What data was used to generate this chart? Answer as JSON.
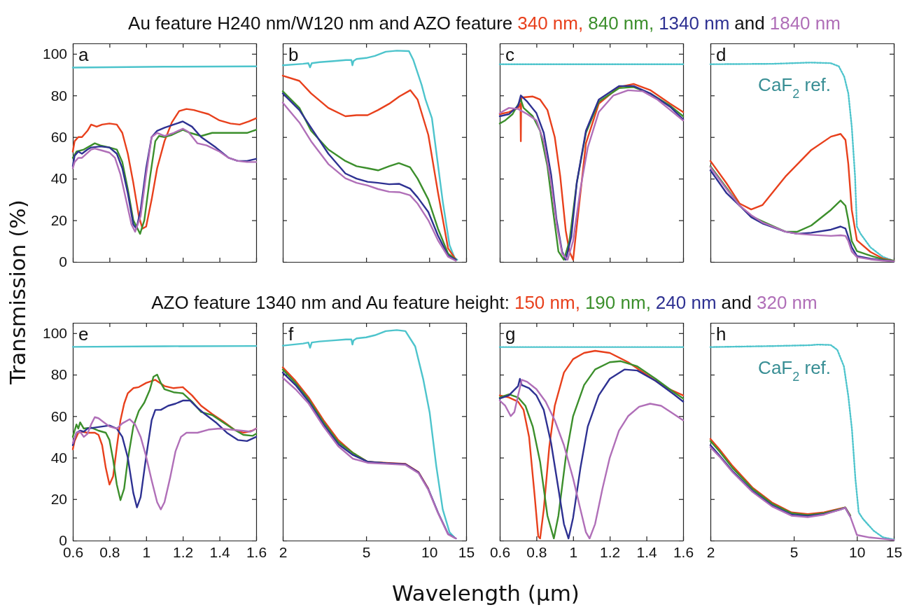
{
  "chart_data": [
    {
      "type": "line",
      "title": "a",
      "subtitle": "Au feature H240 nm/W120 nm and AZO feature",
      "ylabel": "Transmission (%)",
      "legend": "top",
      "annotations": [
        "and"
      ],
      "xlim": [
        0.6,
        1.6
      ],
      "xticks": [
        0.6,
        0.8,
        1,
        1.2,
        1.4,
        1.6
      ],
      "ylim": [
        0,
        105
      ],
      "yticks": [
        0,
        20,
        40,
        60,
        80,
        100
      ],
      "tick_labels": "y",
      "series": [
        {
          "color": "#4dc4cc",
          "x": [
            0.6,
            1.1,
            1.6
          ],
          "values": [
            93.4,
            93.8,
            94
          ]
        },
        {
          "name": "340 nm,",
          "color": "#e8401c",
          "x": [
            0.6,
            0.61,
            0.63,
            0.65,
            0.68,
            0.7,
            0.73,
            0.76,
            0.8,
            0.84,
            0.87,
            0.9,
            0.93,
            0.96,
            0.98,
            1.0,
            1.03,
            1.06,
            1.1,
            1.14,
            1.18,
            1.22,
            1.26,
            1.3,
            1.34,
            1.4,
            1.46,
            1.51,
            1.56,
            1.6
          ],
          "values": [
            53,
            58,
            60,
            60,
            63,
            66,
            65,
            66,
            66.5,
            66,
            62,
            52,
            38,
            22,
            16,
            17,
            30,
            45,
            58,
            67,
            72.5,
            73.5,
            73,
            72,
            71,
            68,
            66.5,
            66,
            67.5,
            69
          ]
        },
        {
          "name": "840 nm,",
          "color": "#3c8f2c",
          "x": [
            0.6,
            0.62,
            0.66,
            0.7,
            0.72,
            0.75,
            0.8,
            0.84,
            0.87,
            0.9,
            0.93,
            0.967,
            0.99,
            1.02,
            1.05,
            1.07,
            1.1,
            1.14,
            1.2,
            1.24,
            1.3,
            1.36,
            1.45,
            1.55,
            1.6
          ],
          "values": [
            50,
            53,
            54,
            56,
            57,
            56,
            55,
            54,
            48,
            35,
            20,
            13.5,
            20,
            40,
            58,
            60.5,
            60,
            61,
            63.5,
            62,
            60.5,
            62,
            62,
            62,
            63.5
          ]
        },
        {
          "name": "1340 nm",
          "color": "#2e3192",
          "x": [
            0.6,
            0.61,
            0.63,
            0.65,
            0.68,
            0.7,
            0.75,
            0.8,
            0.84,
            0.87,
            0.9,
            0.93,
            0.947,
            0.97,
            1.0,
            1.03,
            1.06,
            1.1,
            1.15,
            1.2,
            1.25,
            1.3,
            1.38,
            1.45,
            1.5,
            1.55,
            1.6
          ],
          "values": [
            46,
            51,
            53,
            52,
            54,
            55,
            55.5,
            55,
            52,
            45,
            33,
            18,
            16,
            25,
            45,
            60,
            63,
            64.5,
            66,
            67.5,
            65,
            60,
            55,
            50,
            48.5,
            48.5,
            49.5
          ]
        },
        {
          "name": "1840 nm",
          "color": "#b06fb8",
          "x": [
            0.6,
            0.61,
            0.63,
            0.65,
            0.7,
            0.72,
            0.76,
            0.8,
            0.83,
            0.86,
            0.89,
            0.92,
            0.94,
            0.97,
            1.0,
            1.03,
            1.06,
            1.1,
            1.15,
            1.2,
            1.23,
            1.28,
            1.33,
            1.4,
            1.45,
            1.5,
            1.55,
            1.6
          ],
          "values": [
            45,
            48,
            50,
            50,
            54,
            54.5,
            53.5,
            52.5,
            50,
            42,
            30,
            18,
            14.5,
            22,
            42,
            60,
            62,
            60.5,
            62,
            64,
            62.5,
            57,
            56,
            53,
            50,
            48.5,
            48,
            48
          ]
        }
      ]
    },
    {
      "type": "line",
      "title": "b",
      "log": "x",
      "xlim": [
        2,
        15
      ],
      "xticks": [
        2,
        5,
        10,
        15
      ],
      "ylim": [
        0,
        105
      ],
      "yticks": [
        0,
        20,
        40,
        60,
        80,
        100
      ],
      "tick_labels": false,
      "series": [
        {
          "color": "#4dc4cc",
          "x": [
            2,
            2.5,
            2.65,
            2.7,
            2.75,
            3,
            3.5,
            4,
            4.25,
            4.3,
            4.35,
            4.5,
            5,
            5.5,
            6.2,
            7,
            8,
            8.4,
            9.2,
            9.6,
            10.3,
            10.8,
            11.6,
            12.5,
            13.2,
            13.6
          ],
          "values": [
            94.5,
            95.2,
            95.5,
            93.5,
            95.5,
            96,
            96.5,
            97,
            97,
            94.5,
            96.5,
            97.5,
            98,
            99,
            101,
            101.5,
            101.3,
            97,
            85,
            78,
            69,
            53,
            29,
            8,
            2,
            1
          ]
        },
        {
          "color": "#e8401c",
          "x": [
            2,
            2.4,
            2.73,
            3.3,
            3.98,
            4.5,
            5.08,
            5.7,
            6.44,
            7.2,
            8.12,
            8.8,
            9.9,
            11,
            12.3,
            13.4
          ],
          "values": [
            89.5,
            87,
            81,
            74,
            70,
            70.5,
            70.5,
            73,
            76,
            79.5,
            82.5,
            78,
            61,
            33.5,
            6.5,
            1
          ]
        },
        {
          "color": "#3c8f2c",
          "x": [
            2,
            2.4,
            2.73,
            3.3,
            3.98,
            4.5,
            5.08,
            5.7,
            6.44,
            7.16,
            8.1,
            8.8,
            9.9,
            11,
            12.3,
            13.4
          ],
          "values": [
            82,
            74,
            63,
            54,
            48.5,
            46,
            45,
            44,
            46,
            47.5,
            45.5,
            40,
            30,
            16,
            4,
            1
          ]
        },
        {
          "color": "#2e3192",
          "x": [
            2,
            2.4,
            2.73,
            3.3,
            3.98,
            4.5,
            5.08,
            5.7,
            6.44,
            7.2,
            8.1,
            8.8,
            9.9,
            11,
            12.3,
            13.4
          ],
          "values": [
            81,
            73,
            64.5,
            52,
            42.5,
            40,
            38.5,
            38,
            37.3,
            37.5,
            35.2,
            31,
            24,
            12.7,
            3,
            1
          ]
        },
        {
          "color": "#b06fb8",
          "x": [
            2,
            2.4,
            2.73,
            3.3,
            3.98,
            4.5,
            5.08,
            5.7,
            6.44,
            7.2,
            8.1,
            8.8,
            9.9,
            11,
            12.3,
            13.4
          ],
          "values": [
            76.5,
            67,
            58,
            47,
            40.2,
            38,
            36.7,
            35,
            33.7,
            33.5,
            32,
            28,
            20,
            10.4,
            2.5,
            0.5
          ]
        }
      ]
    },
    {
      "type": "line",
      "title": "c",
      "xlim": [
        0.6,
        1.6
      ],
      "xticks": [
        0.6,
        0.8,
        1,
        1.2,
        1.4,
        1.6
      ],
      "ylim": [
        0,
        105
      ],
      "yticks": [
        0,
        20,
        40,
        60,
        80,
        100
      ],
      "tick_labels": false,
      "series": [
        {
          "color": "#4dc4cc",
          "line_style": "dotted",
          "x": [
            0.6,
            1.1,
            1.6
          ],
          "values": [
            95,
            95,
            95
          ]
        },
        {
          "color": "#e8401c",
          "x": [
            0.6,
            0.65,
            0.7,
            0.713,
            0.715,
            0.717,
            0.72,
            0.78,
            0.82,
            0.86,
            0.9,
            0.93,
            0.96,
            0.98,
            1.0,
            1.03,
            1.07,
            1.14,
            1.25,
            1.33,
            1.42,
            1.53,
            1.6
          ],
          "values": [
            71,
            72,
            74,
            76,
            58,
            78,
            79,
            79.5,
            78,
            73,
            60,
            41,
            15,
            5,
            1,
            25,
            57,
            76,
            84,
            85.5,
            82.6,
            76,
            72
          ]
        },
        {
          "color": "#3c8f2c",
          "x": [
            0.6,
            0.63,
            0.67,
            0.715,
            0.73,
            0.78,
            0.82,
            0.86,
            0.89,
            0.92,
            0.95,
            0.98,
            1.02,
            1.07,
            1.14,
            1.25,
            1.33,
            1.42,
            1.53,
            1.6
          ],
          "values": [
            66.5,
            68,
            71,
            78,
            74,
            70,
            63,
            46,
            25,
            5,
            1,
            10,
            38,
            62,
            77,
            83.5,
            84,
            81,
            75,
            70
          ]
        },
        {
          "color": "#2e3192",
          "x": [
            0.6,
            0.65,
            0.7,
            0.715,
            0.75,
            0.8,
            0.84,
            0.88,
            0.91,
            0.94,
            0.96,
            0.99,
            1.02,
            1.07,
            1.14,
            1.25,
            1.33,
            1.42,
            1.53,
            1.6
          ],
          "values": [
            70,
            71,
            75,
            80,
            77,
            71.5,
            62,
            42,
            20,
            5,
            1,
            12,
            38,
            63,
            78,
            84.5,
            84.5,
            81,
            74.5,
            68.5
          ]
        },
        {
          "color": "#b06fb8",
          "x": [
            0.6,
            0.65,
            0.7,
            0.75,
            0.8,
            0.84,
            0.88,
            0.91,
            0.94,
            0.97,
            1.0,
            1.04,
            1.08,
            1.14,
            1.22,
            1.3,
            1.38,
            1.46,
            1.53,
            1.6
          ],
          "values": [
            71.5,
            74,
            73.5,
            71,
            68,
            58,
            38,
            18,
            4,
            1,
            10,
            35,
            55,
            72,
            80,
            82.5,
            82,
            78,
            73,
            68
          ]
        }
      ]
    },
    {
      "type": "line",
      "title": "d",
      "log": "x",
      "xlim": [
        2,
        15
      ],
      "xticks": [
        2,
        5,
        10,
        15
      ],
      "ylim": [
        0,
        105
      ],
      "yticks": [
        0,
        20,
        40,
        60,
        80,
        100
      ],
      "tick_labels": false,
      "series": [
        {
          "name": "CaF$_{2}$ ref.",
          "color": "#4dc4cc",
          "line_style": "dotted",
          "x": [
            2,
            4,
            6,
            7.5,
            8.2,
            8.7,
            9.1,
            9.45,
            9.8,
            10,
            10.4,
            11.6,
            13.3,
            15
          ],
          "values": [
            95,
            95.2,
            95.8,
            95.5,
            94,
            89,
            81,
            65,
            41,
            17,
            13.6,
            7,
            2.4,
            0.5
          ]
        },
        {
          "color": "#e8401c",
          "x": [
            2,
            2.39,
            2.76,
            3.13,
            3.54,
            4.56,
            6.06,
            7.52,
            8.36,
            8.82,
            9.1,
            9.45,
            10,
            11.6,
            13.3,
            15
          ],
          "values": [
            48.5,
            37.7,
            28,
            25.2,
            27.3,
            41,
            53.8,
            60.2,
            61.5,
            58.6,
            47,
            25,
            10.4,
            4.8,
            1.6,
            0.5
          ]
        },
        {
          "color": "#3c8f2c",
          "x": [
            2,
            2.39,
            2.76,
            3.13,
            3.54,
            4.56,
            5.2,
            6.06,
            7.52,
            8.36,
            8.82,
            9.1,
            9.45,
            10,
            11.6,
            13.3,
            15
          ],
          "values": [
            46,
            35.5,
            27,
            22,
            19.5,
            14.5,
            14.5,
            17.5,
            25,
            29.5,
            27,
            20,
            10,
            5.2,
            3,
            1.2,
            0.5
          ]
        },
        {
          "color": "#2e3192",
          "x": [
            2,
            2.39,
            2.76,
            3.13,
            3.54,
            4.56,
            5.2,
            6.06,
            7.52,
            8.36,
            8.82,
            9.1,
            9.45,
            10,
            11.6,
            13.3,
            15
          ],
          "values": [
            44,
            33,
            27,
            21.5,
            18.5,
            14.5,
            13.5,
            14,
            15.5,
            17,
            16,
            12,
            7,
            2.8,
            1.5,
            0.8,
            0.3
          ]
        },
        {
          "color": "#b06fb8",
          "x": [
            2,
            2.39,
            2.76,
            3.13,
            3.54,
            4.56,
            5.2,
            6.06,
            7.52,
            8.36,
            8.82,
            9.1,
            9.45,
            10,
            11.6,
            13.3,
            15
          ],
          "values": [
            45.5,
            35,
            27,
            22.5,
            19,
            14.5,
            13.5,
            13,
            12.5,
            12.8,
            12.5,
            10,
            5,
            2.3,
            1.2,
            0.6,
            0.3
          ]
        }
      ]
    },
    {
      "type": "line",
      "title": "e",
      "subtitle": "AZO feature 1340 nm and Au feature height:",
      "xlabel": "Wavelength (µm)",
      "legend": "top",
      "annotations": [
        "and"
      ],
      "xlim": [
        0.6,
        1.6
      ],
      "xticks": [
        0.6,
        0.8,
        1,
        1.2,
        1.4,
        1.6
      ],
      "ylim": [
        0,
        105
      ],
      "yticks": [
        0,
        20,
        40,
        60,
        80,
        100
      ],
      "series": [
        {
          "color": "#4dc4cc",
          "x": [
            0.6,
            1.1,
            1.6
          ],
          "values": [
            93.4,
            93.7,
            93.8
          ]
        },
        {
          "name": "150 nm,",
          "color": "#e8401c",
          "x": [
            0.6,
            0.61,
            0.63,
            0.65,
            0.68,
            0.72,
            0.74,
            0.76,
            0.78,
            0.8,
            0.82,
            0.84,
            0.86,
            0.88,
            0.9,
            0.93,
            0.96,
            1.0,
            1.05,
            1.1,
            1.15,
            1.2,
            1.25,
            1.3,
            1.36,
            1.42,
            1.48,
            1.53,
            1.58,
            1.6
          ],
          "values": [
            44,
            48,
            52,
            52.5,
            52,
            52,
            51,
            46,
            35,
            27,
            31,
            45,
            58,
            66,
            71,
            73.5,
            74,
            76,
            77.5,
            74.5,
            73.5,
            74,
            70,
            65,
            61,
            57.5,
            53.5,
            52,
            53,
            54
          ]
        },
        {
          "name": "190 nm,",
          "color": "#3c8f2c",
          "x": [
            0.6,
            0.61,
            0.62,
            0.63,
            0.64,
            0.66,
            0.7,
            0.74,
            0.78,
            0.8,
            0.82,
            0.84,
            0.86,
            0.88,
            0.9,
            0.93,
            0.96,
            0.99,
            1.02,
            1.04,
            1.06,
            1.08,
            1.1,
            1.15,
            1.2,
            1.25,
            1.3,
            1.36,
            1.42,
            1.48,
            1.53,
            1.58,
            1.6
          ],
          "values": [
            50,
            53,
            56,
            54,
            57,
            54,
            54.5,
            53,
            52,
            48.5,
            39,
            27,
            19.5,
            25,
            39,
            55,
            62.5,
            66.5,
            72.7,
            79,
            80,
            76,
            73,
            71.5,
            71,
            67,
            62,
            60.5,
            57,
            53.5,
            51,
            50.5,
            51.5
          ]
        },
        {
          "name": "240 nm",
          "color": "#2e3192",
          "x": [
            0.6,
            0.62,
            0.64,
            0.66,
            0.68,
            0.72,
            0.76,
            0.8,
            0.84,
            0.87,
            0.9,
            0.93,
            0.95,
            0.97,
            1.0,
            1.03,
            1.05,
            1.08,
            1.12,
            1.16,
            1.2,
            1.24,
            1.28,
            1.32,
            1.38,
            1.44,
            1.5,
            1.55,
            1.6
          ],
          "values": [
            46,
            52,
            53,
            52.5,
            54,
            54.5,
            55,
            55.5,
            54,
            50,
            40,
            23,
            16,
            21,
            40.5,
            58,
            63,
            63,
            65,
            66,
            67.5,
            67.5,
            64,
            61,
            57,
            52,
            48.5,
            48,
            50
          ]
        },
        {
          "name": "320 nm",
          "color": "#b06fb8",
          "x": [
            0.6,
            0.62,
            0.64,
            0.66,
            0.68,
            0.7,
            0.72,
            0.74,
            0.77,
            0.8,
            0.84,
            0.87,
            0.91,
            0.94,
            0.97,
            1.0,
            1.03,
            1.06,
            1.08,
            1.1,
            1.13,
            1.16,
            1.19,
            1.22,
            1.28,
            1.34,
            1.4,
            1.46,
            1.52,
            1.57,
            1.6
          ],
          "values": [
            47,
            52,
            52.5,
            50,
            51.5,
            56,
            59.5,
            59,
            57,
            55,
            54,
            56.5,
            58.5,
            56,
            50,
            40.5,
            29,
            18.5,
            15,
            18.5,
            30,
            43,
            50,
            52,
            52,
            53.5,
            54,
            53.5,
            53,
            52.5,
            54
          ]
        }
      ]
    },
    {
      "type": "line",
      "title": "f",
      "log": "x",
      "xlim": [
        2,
        15
      ],
      "xticks": [
        2,
        5,
        10,
        15
      ],
      "ylim": [
        0,
        105
      ],
      "yticks": [
        0,
        20,
        40,
        60,
        80,
        100
      ],
      "tick_labels": "x",
      "series": [
        {
          "color": "#4dc4cc",
          "x": [
            2,
            2.5,
            2.65,
            2.7,
            2.75,
            3,
            3.5,
            4,
            4.25,
            4.3,
            4.35,
            4.5,
            5,
            5.5,
            6.2,
            7,
            7.7,
            8.57,
            9.37,
            10.05,
            10.8,
            11.6,
            12.5,
            13.2
          ],
          "values": [
            94,
            95,
            95.5,
            93,
            95.5,
            96,
            96.5,
            97,
            97,
            94.5,
            96.5,
            97.5,
            98,
            99,
            101,
            101.5,
            101,
            93.6,
            77.6,
            61.6,
            36,
            15,
            4,
            1.5
          ]
        },
        {
          "color": "#e8401c",
          "x": [
            2,
            2.3,
            2.66,
            3.13,
            3.68,
            4.32,
            5.08,
            6.2,
            7.7,
            8.89,
            9.9
          ],
          "values": [
            83.5,
            77,
            69,
            58,
            48.5,
            42.3,
            38,
            37.5,
            37,
            33,
            25
          ]
        },
        {
          "color": "#3c8f2c",
          "x": [
            2,
            2.3,
            2.66,
            3.13,
            3.68,
            4.32,
            5.08,
            6.2
          ],
          "values": [
            82.5,
            76,
            68,
            57,
            47.5,
            42.3,
            38,
            37.3
          ]
        },
        {
          "color": "#2e3192",
          "x": [
            2,
            2.3,
            2.66,
            3.13,
            3.68,
            4.32,
            5.08,
            6.2,
            7.7,
            8.89,
            9.9,
            11,
            12.3,
            13.4
          ],
          "values": [
            81,
            75,
            67,
            56,
            46.5,
            41.3,
            38,
            37.3,
            36.8,
            32.8,
            24.8,
            13.6,
            3.2,
            1
          ]
        },
        {
          "color": "#b06fb8",
          "x": [
            2,
            2.3,
            2.66,
            3.13,
            3.68,
            4.32,
            5.08,
            6.2,
            7.7,
            8.89,
            9.9,
            11,
            12.3,
            13.4
          ],
          "values": [
            78.5,
            73,
            66,
            55,
            45.5,
            39.5,
            37.5,
            37,
            36.5,
            32.5,
            24.5,
            13.3,
            3,
            1
          ]
        }
      ]
    },
    {
      "type": "line",
      "title": "g",
      "xlim": [
        0.6,
        1.6
      ],
      "xticks": [
        0.6,
        0.8,
        1,
        1.2,
        1.4,
        1.6
      ],
      "ylim": [
        0,
        105
      ],
      "yticks": [
        0,
        20,
        40,
        60,
        80,
        100
      ],
      "tick_labels": "x",
      "series": [
        {
          "color": "#4dc4cc",
          "line_style": "dotted",
          "x": [
            0.6,
            1.1,
            1.6
          ],
          "values": [
            93.3,
            93.3,
            93.3
          ]
        },
        {
          "color": "#e8401c",
          "x": [
            0.6,
            0.65,
            0.7,
            0.73,
            0.76,
            0.79,
            0.81,
            0.82,
            0.84,
            0.87,
            0.9,
            0.95,
            1.0,
            1.06,
            1.12,
            1.2,
            1.3,
            1.4,
            1.5,
            1.6
          ],
          "values": [
            70,
            69,
            67,
            63,
            50,
            22,
            2,
            1,
            15,
            45,
            65,
            81,
            87.5,
            90.5,
            91.5,
            90.5,
            86,
            80,
            74,
            70
          ]
        },
        {
          "color": "#3c8f2c",
          "x": [
            0.6,
            0.65,
            0.7,
            0.74,
            0.78,
            0.82,
            0.86,
            0.895,
            0.92,
            0.96,
            1.0,
            1.06,
            1.12,
            1.2,
            1.26,
            1.35,
            1.45,
            1.55,
            1.6
          ],
          "values": [
            69,
            70.5,
            69,
            65,
            55,
            38,
            12,
            1,
            12,
            40,
            60,
            75,
            82.5,
            86,
            86.5,
            84,
            78,
            71.5,
            68.5
          ]
        },
        {
          "color": "#2e3192",
          "x": [
            0.6,
            0.65,
            0.7,
            0.71,
            0.72,
            0.76,
            0.8,
            0.84,
            0.88,
            0.92,
            0.95,
            0.975,
            1.0,
            1.04,
            1.08,
            1.14,
            1.2,
            1.28,
            1.35,
            1.45,
            1.55,
            1.6
          ],
          "values": [
            68.5,
            70,
            74.5,
            78,
            75,
            73.5,
            70,
            63,
            47,
            25,
            8,
            1,
            11,
            35,
            55,
            70,
            78,
            82.5,
            82,
            77,
            70.5,
            67
          ]
        },
        {
          "color": "#b06fb8",
          "x": [
            0.6,
            0.63,
            0.66,
            0.68,
            0.7,
            0.72,
            0.75,
            0.8,
            0.85,
            0.9,
            0.95,
            1.0,
            1.04,
            1.07,
            1.09,
            1.12,
            1.16,
            1.2,
            1.25,
            1.3,
            1.36,
            1.42,
            1.48,
            1.54,
            1.6
          ],
          "values": [
            67.5,
            65,
            60,
            62,
            70,
            77.5,
            76.5,
            73,
            67,
            58,
            46,
            30,
            15,
            4,
            1,
            8,
            25,
            40,
            53,
            60,
            64.5,
            66,
            65,
            61.5,
            58
          ]
        }
      ]
    },
    {
      "type": "line",
      "title": "h",
      "log": "x",
      "xlim": [
        2,
        15
      ],
      "xticks": [
        2,
        5,
        10,
        15
      ],
      "ylim": [
        0,
        105
      ],
      "yticks": [
        0,
        20,
        40,
        60,
        80,
        100
      ],
      "tick_labels": "x",
      "series": [
        {
          "name": "CaF$_{2}$ ref.",
          "color": "#4dc4cc",
          "line_style": "dotted",
          "x": [
            2,
            4,
            6,
            6.5,
            7.5,
            8.06,
            8.67,
            9.1,
            9.47,
            9.84,
            10.2,
            10.7,
            12,
            13.3,
            15
          ],
          "values": [
            93.3,
            93.8,
            94.2,
            94.5,
            94.3,
            92,
            84,
            69.6,
            53.6,
            29.6,
            13.6,
            10.4,
            4.8,
            1.6,
            0.5
          ]
        },
        {
          "color": "#e8401c",
          "x": [
            2,
            2.21,
            2.55,
            3.17,
            3.93,
            4.87,
            5.83,
            6.97,
            8.35,
            8.8,
            9.3
          ],
          "values": [
            49,
            44,
            36,
            25.6,
            18.4,
            13.6,
            12.8,
            13.6,
            15.5,
            16,
            12
          ]
        },
        {
          "color": "#3c8f2c",
          "x": [
            2,
            2.21,
            2.55,
            3.17,
            3.93,
            4.87,
            5.83,
            6.97,
            8.35,
            8.8,
            9.3
          ],
          "values": [
            48,
            43,
            35,
            25,
            17.8,
            13.2,
            12.3,
            13.2,
            15.2,
            16,
            12
          ]
        },
        {
          "color": "#2e3192",
          "x": [
            2,
            2.21,
            2.55,
            3.17,
            3.93,
            4.87,
            5.83,
            6.97,
            8.35,
            8.8,
            9.3
          ],
          "values": [
            46,
            41,
            33.5,
            24,
            17,
            12.5,
            11.8,
            12.8,
            15,
            15.8,
            11.5
          ]
        },
        {
          "color": "#b06fb8",
          "x": [
            2,
            2.21,
            2.55,
            3.17,
            3.93,
            4.87,
            5.83,
            6.97,
            8.35,
            8.8,
            9.3,
            10,
            11.5,
            15
          ],
          "values": [
            45,
            40.5,
            33,
            23.5,
            16.5,
            12,
            11.3,
            12.5,
            15,
            15.8,
            11.5,
            2.7,
            1.5,
            0.3
          ]
        }
      ]
    }
  ]
}
